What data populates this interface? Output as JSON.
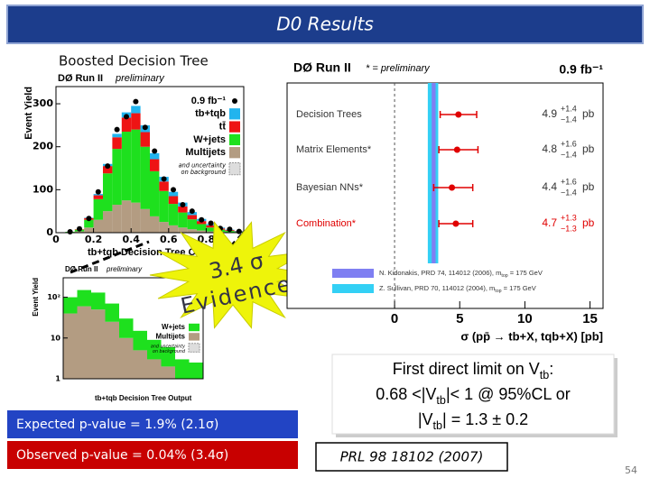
{
  "title": "D0 Results",
  "subtitle": "Boosted Decision Tree",
  "star": {
    "sigma": "3.4 σ",
    "word": "Evidence"
  },
  "vtb_box": {
    "lines": [
      [
        {
          "t": "First direct limit on V"
        },
        {
          "t": "tb",
          "sub": true
        },
        {
          "t": ":"
        }
      ],
      [
        {
          "t": "0.68 <|V"
        },
        {
          "t": "tb",
          "sub": true
        },
        {
          "t": "|< 1 @ 95%CL or"
        }
      ],
      [
        {
          "t": "|V"
        },
        {
          "t": "tb",
          "sub": true
        },
        {
          "t": "| = 1.3 ± 0.2"
        }
      ]
    ]
  },
  "reference": "PRL 98 18102 (2007)",
  "expected": "Expected p-value = 1.9% (2.1σ)",
  "observed": "Observed p-value = 0.04% (3.4σ)",
  "page_number": "54",
  "chart_data": [
    {
      "type": "histogram",
      "title": "DØ Run II",
      "subtitle": "preliminary",
      "ylabel": "Event Yield",
      "xlabel": "tb+tqb Decision Tree Output",
      "stacked": true,
      "bins": [
        0,
        0.05,
        0.1,
        0.15,
        0.2,
        0.25,
        0.3,
        0.35,
        0.4,
        0.45,
        0.5,
        0.55,
        0.6,
        0.65,
        0.7,
        0.75,
        0.8,
        0.85,
        0.9,
        0.95,
        1
      ],
      "series": [
        {
          "name": "Multijets",
          "color": "#b39c82",
          "values": [
            0,
            1,
            3,
            12,
            30,
            50,
            65,
            75,
            70,
            55,
            38,
            25,
            17,
            12,
            8,
            5,
            3,
            2,
            1,
            0
          ]
        },
        {
          "name": "W+jets",
          "color": "#1ee01e",
          "values": [
            0,
            1,
            4,
            18,
            48,
            88,
            130,
            160,
            170,
            145,
            105,
            72,
            50,
            35,
            23,
            15,
            9,
            5,
            3,
            2
          ]
        },
        {
          "name": "tt̄",
          "color": "#ee1414",
          "values": [
            0,
            0,
            1,
            4,
            9,
            17,
            27,
            33,
            38,
            34,
            28,
            22,
            18,
            14,
            10,
            7,
            5,
            3,
            2,
            1
          ]
        },
        {
          "name": "tb+tqb",
          "color": "#22b4ee",
          "values": [
            0,
            0,
            0,
            1,
            3,
            5,
            8,
            12,
            17,
            16,
            14,
            11,
            10,
            9,
            7,
            5,
            3,
            2,
            1,
            1
          ]
        }
      ],
      "data_series": {
        "name": "0.9 fb⁻¹",
        "color": "#000000",
        "values": [
          0,
          2,
          9,
          33,
          95,
          155,
          240,
          270,
          305,
          245,
          190,
          125,
          100,
          65,
          50,
          30,
          22,
          10,
          8,
          3
        ]
      },
      "legend_note": [
        "and uncertainty",
        "on background"
      ],
      "xlim": [
        0,
        1
      ],
      "ylim": [
        0,
        340
      ],
      "xticks": [
        0,
        0.2,
        0.4,
        0.6,
        0.8,
        1
      ],
      "yticks": [
        0,
        100,
        200,
        300
      ]
    },
    {
      "type": "histogram",
      "title": "DØ Run II",
      "subtitle": "preliminary",
      "ylabel": "Event Yield",
      "xlabel": "tb+tqb Decision Tree Output",
      "stacked": true,
      "log": true,
      "bins": [
        0,
        0.1,
        0.2,
        0.3,
        0.4,
        0.5,
        0.6,
        0.7,
        0.8,
        0.9,
        1
      ],
      "series": [
        {
          "name": "Multijets",
          "color": "#b39c82",
          "values": [
            40,
            60,
            50,
            25,
            10,
            5,
            3,
            2,
            1,
            1
          ]
        },
        {
          "name": "W+jets",
          "color": "#1ee01e",
          "values": [
            60,
            90,
            80,
            45,
            20,
            10,
            6,
            4,
            2,
            1.5
          ]
        }
      ],
      "legend_note": [
        "and uncertainty",
        "on background"
      ],
      "xlim": [
        0,
        1
      ],
      "ylim": [
        1,
        300
      ],
      "yticks": [
        {
          "value": 100,
          "label": "10²"
        },
        10,
        1
      ]
    },
    {
      "type": "forest",
      "title": "DØ Run II",
      "note": "* = preliminary",
      "lumi": "0.9 fb⁻¹",
      "unit": "pb",
      "categories": [
        "Decision Trees",
        "Matrix Elements*",
        "Bayesian NNs*",
        "Combination*"
      ],
      "label_colors": [
        "#333333",
        "#333333",
        "#333333",
        "#e00000"
      ],
      "values": [
        4.9,
        4.8,
        4.4,
        4.7
      ],
      "errors_plus": [
        1.4,
        1.6,
        1.6,
        1.3
      ],
      "errors_plus_labels": [
        "+1.4",
        "+1.6",
        "+1.6",
        "+1.3"
      ],
      "errors_minus": [
        1.4,
        1.4,
        1.4,
        1.3
      ],
      "errors_minus_labels": [
        "−1.4",
        "−1.4",
        "−1.4",
        "−1.3"
      ],
      "point_color": "#e00000",
      "bands": [
        {
          "name": [
            {
              "t": "N. Kidonakis, PRD 74, 114012 (2006), m"
            },
            {
              "t": "top",
              "sub": true
            },
            {
              "t": " = 175 GeV"
            }
          ],
          "color": "#7f7ff2",
          "center": 3.0,
          "half": 0.15
        },
        {
          "name": [
            {
              "t": "Z. Sullivan,   PRD 70, 114012 (2004), m"
            },
            {
              "t": "top",
              "sub": true
            },
            {
              "t": " = 175 GeV"
            }
          ],
          "color": "#33d0f5",
          "center": 2.95,
          "half": 0.4
        }
      ],
      "xlabel": "σ (pp̄ → tb+X, tqb+X)  [pb]",
      "xlim": [
        -8.25,
        16
      ],
      "xticks": [
        0,
        5,
        10,
        15
      ]
    }
  ]
}
